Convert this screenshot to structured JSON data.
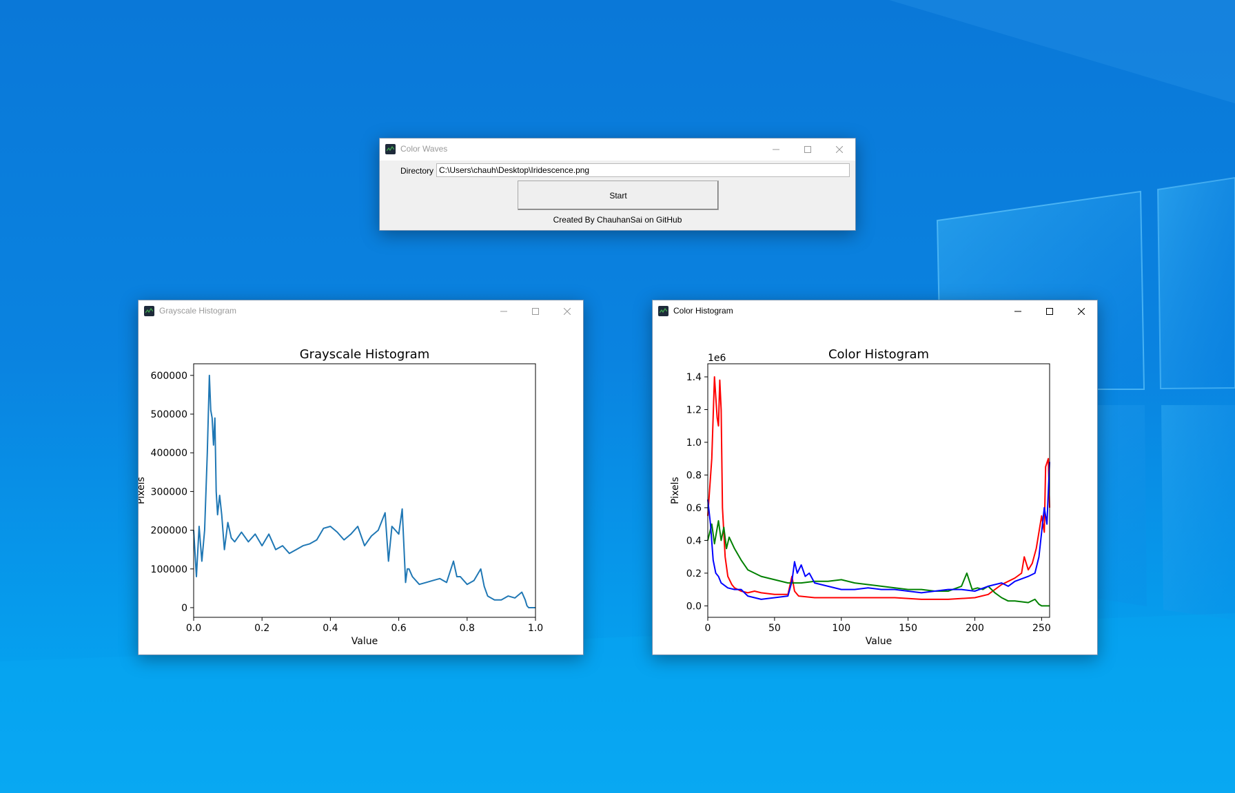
{
  "main_window": {
    "title": "Color Waves",
    "directory_label": "Directory",
    "directory_value": "C:\\Users\\chauh\\Desktop\\Iridescence.png",
    "start_label": "Start",
    "credit": "Created By ChauhanSai on GitHub"
  },
  "gray_window": {
    "title": "Grayscale Histogram"
  },
  "color_window": {
    "title": "Color Histogram"
  },
  "chart_data": [
    {
      "type": "line",
      "title": "Grayscale Histogram",
      "xlabel": "Value",
      "ylabel": "Pixels",
      "xlim": [
        0,
        1
      ],
      "ylim": [
        -25000,
        630000
      ],
      "xticks": [
        0.0,
        0.2,
        0.4,
        0.6,
        0.8,
        1.0
      ],
      "xtick_labels": [
        "0.0",
        "0.2",
        "0.4",
        "0.6",
        "0.8",
        "1.0"
      ],
      "yticks": [
        0,
        100000,
        200000,
        300000,
        400000,
        500000,
        600000
      ],
      "ytick_labels": [
        "0",
        "100000",
        "200000",
        "300000",
        "400000",
        "500000",
        "600000"
      ],
      "series": [
        {
          "color": "#1f77b4",
          "x": [
            0.0,
            0.008,
            0.016,
            0.024,
            0.032,
            0.04,
            0.046,
            0.05,
            0.054,
            0.058,
            0.062,
            0.066,
            0.07,
            0.076,
            0.082,
            0.09,
            0.1,
            0.11,
            0.12,
            0.14,
            0.16,
            0.18,
            0.2,
            0.22,
            0.24,
            0.26,
            0.28,
            0.3,
            0.32,
            0.34,
            0.36,
            0.38,
            0.4,
            0.42,
            0.44,
            0.46,
            0.48,
            0.5,
            0.52,
            0.54,
            0.56,
            0.57,
            0.58,
            0.6,
            0.61,
            0.62,
            0.625,
            0.63,
            0.64,
            0.66,
            0.68,
            0.7,
            0.72,
            0.74,
            0.76,
            0.77,
            0.78,
            0.8,
            0.82,
            0.84,
            0.85,
            0.86,
            0.88,
            0.9,
            0.92,
            0.94,
            0.96,
            0.97,
            0.975,
            0.98,
            0.99,
            1.0
          ],
          "y": [
            200000,
            80000,
            210000,
            120000,
            200000,
            400000,
            600000,
            510000,
            490000,
            420000,
            490000,
            300000,
            240000,
            290000,
            240000,
            150000,
            220000,
            180000,
            170000,
            195000,
            170000,
            190000,
            160000,
            190000,
            150000,
            160000,
            140000,
            150000,
            160000,
            165000,
            175000,
            205000,
            210000,
            195000,
            175000,
            190000,
            210000,
            160000,
            185000,
            200000,
            245000,
            120000,
            210000,
            190000,
            255000,
            65000,
            100000,
            100000,
            80000,
            60000,
            65000,
            70000,
            75000,
            65000,
            120000,
            80000,
            80000,
            60000,
            70000,
            100000,
            55000,
            30000,
            20000,
            20000,
            30000,
            25000,
            40000,
            20000,
            5000,
            0,
            0,
            0
          ]
        }
      ]
    },
    {
      "type": "line",
      "title": "Color Histogram",
      "xlabel": "Value",
      "ylabel": "Pixels",
      "offset_label": "1e6",
      "xlim": [
        0,
        256
      ],
      "ylim": [
        -0.07,
        1.48
      ],
      "xticks": [
        0,
        50,
        100,
        150,
        200,
        250
      ],
      "xtick_labels": [
        "0",
        "50",
        "100",
        "150",
        "200",
        "250"
      ],
      "yticks": [
        0.0,
        0.2,
        0.4,
        0.6,
        0.8,
        1.0,
        1.2,
        1.4
      ],
      "ytick_labels": [
        "0.0",
        "0.2",
        "0.4",
        "0.6",
        "0.8",
        "1.0",
        "1.2",
        "1.4"
      ],
      "series": [
        {
          "color": "#ff0000",
          "x": [
            0,
            3,
            5,
            7,
            8,
            9,
            10,
            11,
            13,
            15,
            18,
            20,
            25,
            30,
            35,
            40,
            50,
            60,
            63,
            65,
            68,
            80,
            100,
            120,
            140,
            160,
            180,
            200,
            210,
            220,
            225,
            230,
            235,
            237,
            240,
            243,
            246,
            250,
            252,
            253,
            255,
            256
          ],
          "y": [
            0.55,
            0.9,
            1.4,
            1.15,
            1.1,
            1.38,
            1.2,
            0.6,
            0.3,
            0.18,
            0.13,
            0.11,
            0.09,
            0.08,
            0.09,
            0.08,
            0.07,
            0.07,
            0.18,
            0.09,
            0.06,
            0.05,
            0.05,
            0.05,
            0.05,
            0.04,
            0.04,
            0.05,
            0.07,
            0.13,
            0.15,
            0.17,
            0.2,
            0.3,
            0.22,
            0.26,
            0.35,
            0.55,
            0.45,
            0.85,
            0.9,
            0.6
          ]
        },
        {
          "color": "#008000",
          "x": [
            0,
            3,
            5,
            8,
            10,
            12,
            14,
            16,
            20,
            25,
            30,
            40,
            50,
            60,
            70,
            80,
            90,
            100,
            110,
            120,
            130,
            140,
            150,
            160,
            170,
            180,
            190,
            194,
            198,
            202,
            206,
            210,
            215,
            220,
            225,
            230,
            240,
            245,
            248,
            250,
            256
          ],
          "y": [
            0.4,
            0.5,
            0.38,
            0.52,
            0.4,
            0.48,
            0.35,
            0.42,
            0.35,
            0.28,
            0.22,
            0.18,
            0.16,
            0.14,
            0.14,
            0.15,
            0.15,
            0.16,
            0.14,
            0.13,
            0.12,
            0.11,
            0.1,
            0.1,
            0.09,
            0.09,
            0.12,
            0.2,
            0.1,
            0.11,
            0.1,
            0.12,
            0.08,
            0.05,
            0.03,
            0.03,
            0.02,
            0.04,
            0.01,
            0.0,
            0.0
          ]
        },
        {
          "color": "#0000ff",
          "x": [
            0,
            2,
            4,
            6,
            8,
            10,
            15,
            20,
            25,
            30,
            35,
            40,
            50,
            60,
            63,
            65,
            67,
            70,
            73,
            76,
            80,
            90,
            100,
            110,
            120,
            130,
            140,
            150,
            160,
            170,
            180,
            190,
            200,
            210,
            220,
            225,
            230,
            240,
            245,
            248,
            250,
            252,
            254,
            256
          ],
          "y": [
            0.65,
            0.5,
            0.28,
            0.2,
            0.18,
            0.14,
            0.11,
            0.1,
            0.1,
            0.06,
            0.05,
            0.04,
            0.05,
            0.06,
            0.15,
            0.27,
            0.2,
            0.25,
            0.18,
            0.2,
            0.14,
            0.12,
            0.1,
            0.1,
            0.11,
            0.1,
            0.1,
            0.09,
            0.08,
            0.09,
            0.1,
            0.1,
            0.09,
            0.12,
            0.14,
            0.12,
            0.15,
            0.18,
            0.2,
            0.3,
            0.45,
            0.6,
            0.5,
            0.88
          ]
        }
      ]
    }
  ]
}
